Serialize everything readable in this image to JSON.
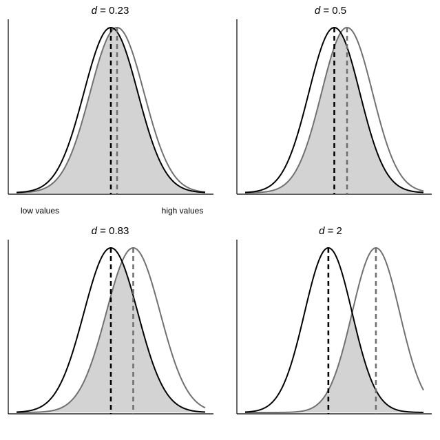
{
  "colors": {
    "group1": "#000000",
    "group2": "#707070",
    "overlap_fill": "#d3d3d3",
    "axis": "#000000"
  },
  "chart_data": [
    {
      "type": "area",
      "title": "d = 0.23",
      "title_var": "d",
      "title_value": "0.23",
      "d": 0.23,
      "xlim": [
        -3.5,
        3.5
      ],
      "grid": false,
      "x_tick_labels": [
        "low values",
        "high values"
      ],
      "series": [
        {
          "role": "group1",
          "mean": 0,
          "sd": 1,
          "style": "solid",
          "color": "#000000"
        },
        {
          "role": "group2",
          "mean": 0.23,
          "sd": 1,
          "style": "solid",
          "color": "#707070"
        }
      ],
      "mean_lines": [
        0,
        0.23
      ],
      "shaded": "overlap"
    },
    {
      "type": "area",
      "title": "d = 0.5",
      "title_var": "d",
      "title_value": "0.5",
      "d": 0.5,
      "xlim": [
        -3.5,
        3.5
      ],
      "grid": false,
      "x_tick_labels": [],
      "series": [
        {
          "role": "group1",
          "mean": 0,
          "sd": 1,
          "style": "solid",
          "color": "#000000"
        },
        {
          "role": "group2",
          "mean": 0.5,
          "sd": 1,
          "style": "solid",
          "color": "#707070"
        }
      ],
      "mean_lines": [
        0,
        0.5
      ],
      "shaded": "overlap"
    },
    {
      "type": "area",
      "title": "d = 0.83",
      "title_var": "d",
      "title_value": "0.83",
      "d": 0.83,
      "xlim": [
        -3.5,
        3.5
      ],
      "grid": false,
      "x_tick_labels": [],
      "series": [
        {
          "role": "group1",
          "mean": 0,
          "sd": 1,
          "style": "solid",
          "color": "#000000"
        },
        {
          "role": "group2",
          "mean": 0.83,
          "sd": 1,
          "style": "solid",
          "color": "#707070"
        }
      ],
      "mean_lines": [
        0,
        0.83
      ],
      "shaded": "overlap"
    },
    {
      "type": "area",
      "title": "d = 2",
      "title_var": "d",
      "title_value": "2",
      "d": 2,
      "xlim": [
        -3.5,
        4.0
      ],
      "grid": false,
      "x_tick_labels": [],
      "series": [
        {
          "role": "group1",
          "mean": 0,
          "sd": 1,
          "style": "solid",
          "color": "#000000"
        },
        {
          "role": "group2",
          "mean": 2,
          "sd": 1,
          "style": "solid",
          "color": "#707070"
        }
      ],
      "mean_lines": [
        0,
        2
      ],
      "shaded": "overlap"
    }
  ]
}
